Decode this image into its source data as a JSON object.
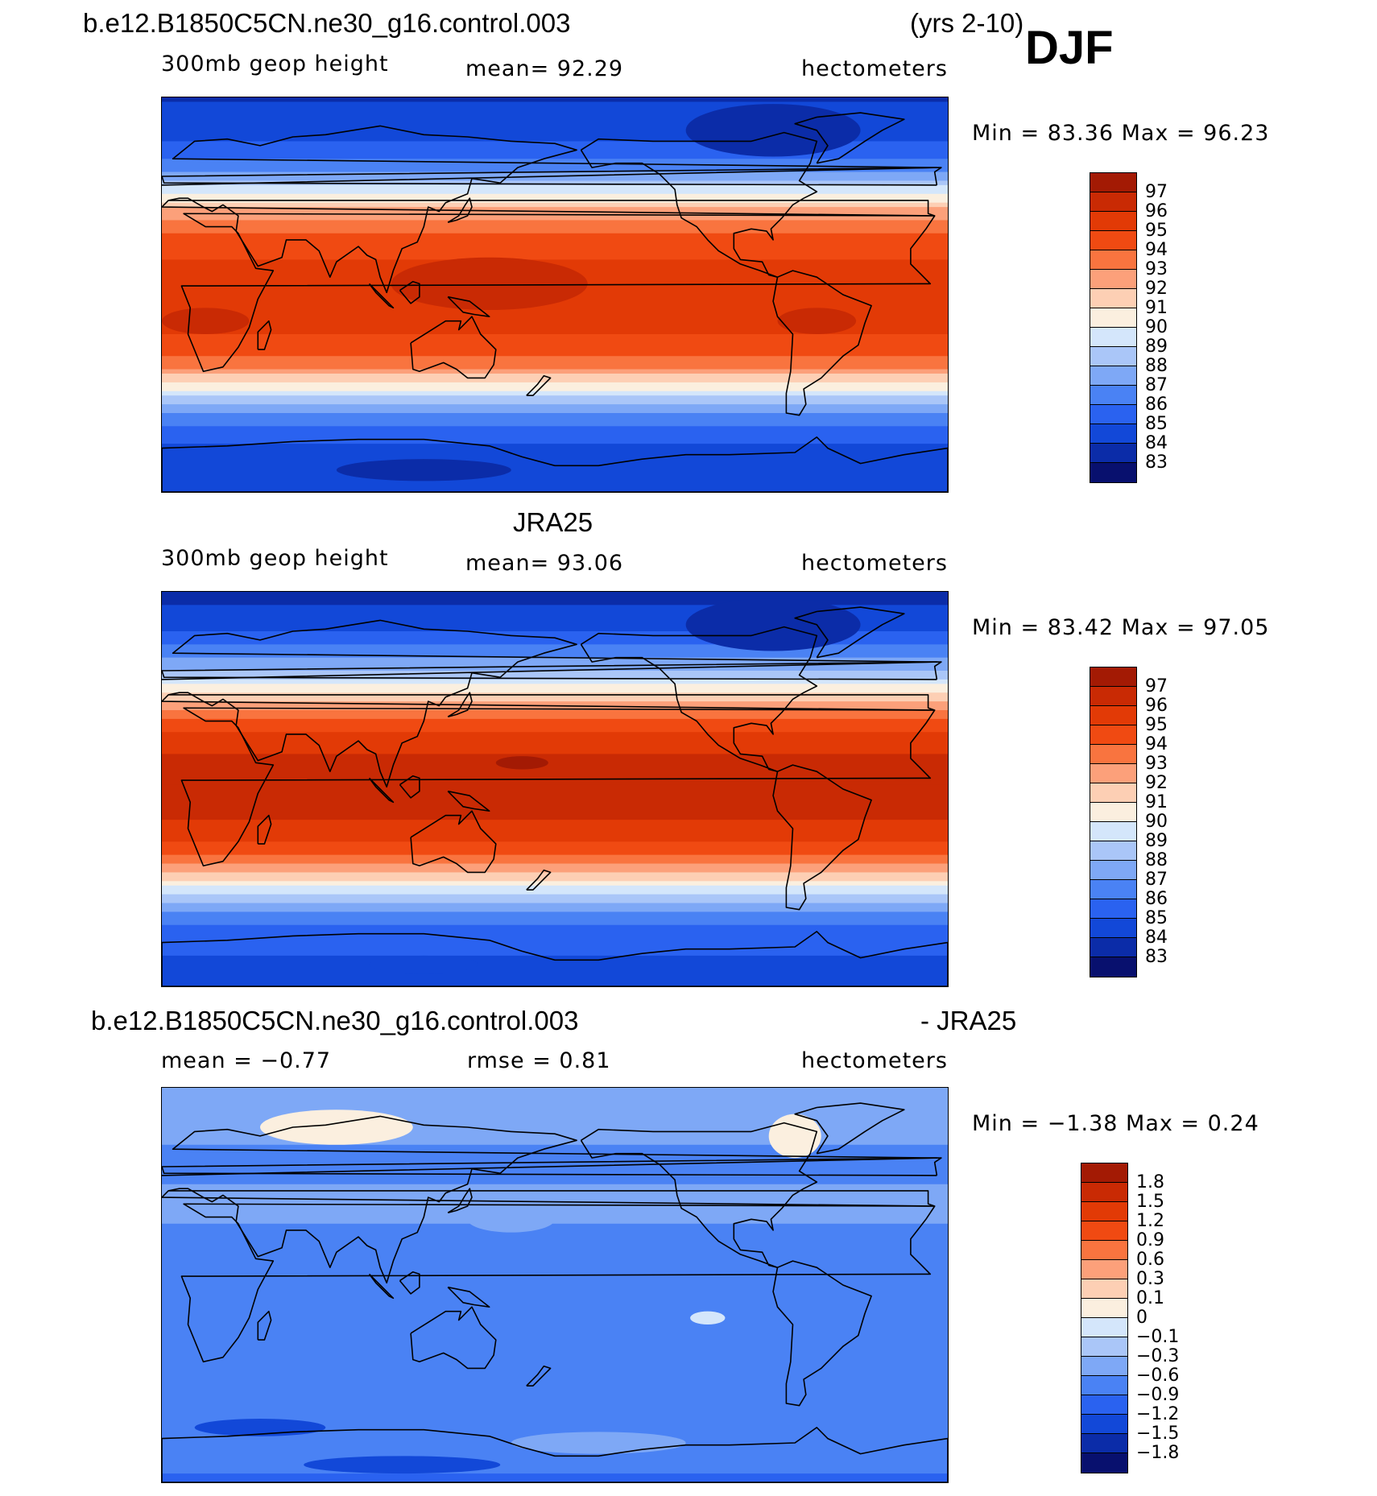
{
  "header": {
    "case_name": "b.e12.B1850C5CN.ne30_g16.control.003",
    "years": "(yrs 2-10)",
    "season": "DJF"
  },
  "colors": {
    "scale": [
      "#08106e",
      "#0b2ca8",
      "#1248d8",
      "#2a62f0",
      "#4a82f4",
      "#7ea8f6",
      "#aac6f8",
      "#d4e6fb",
      "#fbefdf",
      "#fdcfb4",
      "#fca07a",
      "#f9743f",
      "#f04a12",
      "#e23a06",
      "#c92a04",
      "#a31a04",
      "#820808"
    ],
    "coast": "#000000"
  },
  "panels": [
    {
      "id": "model",
      "title": "",
      "field": "300mb geop height",
      "stat": "mean=   92.29",
      "units": "hectometers",
      "minmax": "Min =   83.36 Max =   96.23",
      "bands": [
        {
          "lat": 90,
          "v": 83.9
        },
        {
          "lat": 80,
          "v": 84.3
        },
        {
          "lat": 70,
          "v": 85.0
        },
        {
          "lat": 60,
          "v": 86.3
        },
        {
          "lat": 52,
          "v": 88.0
        },
        {
          "lat": 46,
          "v": 90.0
        },
        {
          "lat": 40,
          "v": 91.8
        },
        {
          "lat": 32,
          "v": 93.6
        },
        {
          "lat": 22,
          "v": 94.6
        },
        {
          "lat": 10,
          "v": 95.3
        },
        {
          "lat": -10,
          "v": 95.5
        },
        {
          "lat": -22,
          "v": 94.8
        },
        {
          "lat": -32,
          "v": 93.3
        },
        {
          "lat": -40,
          "v": 91.0
        },
        {
          "lat": -46,
          "v": 89.2
        },
        {
          "lat": -52,
          "v": 87.5
        },
        {
          "lat": -60,
          "v": 85.8
        },
        {
          "lat": -70,
          "v": 84.8
        },
        {
          "lat": -80,
          "v": 84.4
        },
        {
          "lat": -90,
          "v": 84.3
        }
      ],
      "blobs": [
        {
          "lon": 150,
          "lat": 5,
          "rx": 45,
          "ry": 12,
          "v": 96.2
        },
        {
          "lon": 20,
          "lat": -12,
          "rx": 20,
          "ry": 6,
          "v": 96.0
        },
        {
          "lon": 300,
          "lat": -12,
          "rx": 18,
          "ry": 6,
          "v": 96.0
        },
        {
          "lon": 120,
          "lat": -80,
          "rx": 40,
          "ry": 5,
          "v": 83.4
        },
        {
          "lon": 280,
          "lat": 75,
          "rx": 40,
          "ry": 12,
          "v": 83.6
        }
      ],
      "cbar_labels": [
        "97",
        "96",
        "95",
        "94",
        "93",
        "92",
        "91",
        "90",
        "89",
        "88",
        "87",
        "86",
        "85",
        "84",
        "83"
      ]
    },
    {
      "id": "obs",
      "title": "JRA25",
      "field": "300mb geop height",
      "stat": "mean=   93.06",
      "units": "hectometers",
      "minmax": "Min =   83.42 Max =   97.05",
      "bands": [
        {
          "lat": 90,
          "v": 83.6
        },
        {
          "lat": 80,
          "v": 84.2
        },
        {
          "lat": 70,
          "v": 85.2
        },
        {
          "lat": 60,
          "v": 86.8
        },
        {
          "lat": 52,
          "v": 88.6
        },
        {
          "lat": 46,
          "v": 90.3
        },
        {
          "lat": 40,
          "v": 92.0
        },
        {
          "lat": 32,
          "v": 94.0
        },
        {
          "lat": 22,
          "v": 95.6
        },
        {
          "lat": 10,
          "v": 96.3
        },
        {
          "lat": -10,
          "v": 96.4
        },
        {
          "lat": -22,
          "v": 95.4
        },
        {
          "lat": -32,
          "v": 93.8
        },
        {
          "lat": -40,
          "v": 91.6
        },
        {
          "lat": -46,
          "v": 89.6
        },
        {
          "lat": -52,
          "v": 87.8
        },
        {
          "lat": -60,
          "v": 86.2
        },
        {
          "lat": -70,
          "v": 85.3
        },
        {
          "lat": -80,
          "v": 84.8
        },
        {
          "lat": -90,
          "v": 84.7
        }
      ],
      "blobs": [
        {
          "lon": 165,
          "lat": 12,
          "rx": 12,
          "ry": 3,
          "v": 97.0
        },
        {
          "lon": 120,
          "lat": -80,
          "rx": 25,
          "ry": 4,
          "v": 84.2
        },
        {
          "lon": 280,
          "lat": 75,
          "rx": 40,
          "ry": 12,
          "v": 83.5
        }
      ],
      "cbar_labels": [
        "97",
        "96",
        "95",
        "94",
        "93",
        "92",
        "91",
        "90",
        "89",
        "88",
        "87",
        "86",
        "85",
        "84",
        "83"
      ]
    },
    {
      "id": "diff",
      "title": "b.e12.B1850C5CN.ne30_g16.control.003",
      "title_right": "- JRA25",
      "field": "mean =   −0.77",
      "stat": "rmse =    0.81",
      "units": "hectometers",
      "minmax": "Min =   −1.38 Max =     0.24",
      "bands": [
        {
          "lat": 90,
          "v": -0.4
        },
        {
          "lat": 70,
          "v": -0.55
        },
        {
          "lat": 55,
          "v": -0.7
        },
        {
          "lat": 35,
          "v": -0.5
        },
        {
          "lat": 20,
          "v": -0.75
        },
        {
          "lat": 0,
          "v": -0.8
        },
        {
          "lat": -20,
          "v": -0.75
        },
        {
          "lat": -40,
          "v": -0.85
        },
        {
          "lat": -55,
          "v": -0.8
        },
        {
          "lat": -70,
          "v": -0.6
        },
        {
          "lat": -90,
          "v": -1.0
        }
      ],
      "blobs": [
        {
          "lon": 80,
          "lat": 72,
          "rx": 35,
          "ry": 8,
          "v": 0.05
        },
        {
          "lon": 290,
          "lat": 68,
          "rx": 12,
          "ry": 10,
          "v": 0.05
        },
        {
          "lon": 110,
          "lat": -82,
          "rx": 45,
          "ry": 4,
          "v": -1.3
        },
        {
          "lon": 200,
          "lat": -72,
          "rx": 40,
          "ry": 5,
          "v": -0.35
        },
        {
          "lon": 45,
          "lat": -65,
          "rx": 30,
          "ry": 4,
          "v": -1.25
        },
        {
          "lon": 160,
          "lat": 30,
          "rx": 20,
          "ry": 6,
          "v": -0.35
        },
        {
          "lon": 30,
          "lat": 40,
          "rx": 25,
          "ry": 5,
          "v": -0.35
        },
        {
          "lon": 250,
          "lat": -15,
          "rx": 8,
          "ry": 3,
          "v": -0.05
        }
      ],
      "cbar_labels": [
        "1.8",
        "1.5",
        "1.2",
        "0.9",
        "0.6",
        "0.3",
        "0.1",
        "0",
        "−0.1",
        "−0.3",
        "−0.6",
        "−0.9",
        "−1.2",
        "−1.5",
        "−1.8"
      ]
    }
  ],
  "chart_data": [
    {
      "type": "heatmap",
      "title": "b.e12.B1850C5CN.ne30_g16.control.003 (yrs 2-10) DJF",
      "variable": "300mb geop height",
      "units": "hectometers",
      "mean": 92.29,
      "min": 83.36,
      "max": 96.23,
      "contour_levels": [
        83,
        84,
        85,
        86,
        87,
        88,
        89,
        90,
        91,
        92,
        93,
        94,
        95,
        96,
        97
      ]
    },
    {
      "type": "heatmap",
      "title": "JRA25",
      "variable": "300mb geop height",
      "units": "hectometers",
      "mean": 93.06,
      "min": 83.42,
      "max": 97.05,
      "contour_levels": [
        83,
        84,
        85,
        86,
        87,
        88,
        89,
        90,
        91,
        92,
        93,
        94,
        95,
        96,
        97
      ]
    },
    {
      "type": "heatmap",
      "title": "b.e12.B1850C5CN.ne30_g16.control.003 - JRA25",
      "units": "hectometers",
      "mean": -0.77,
      "rmse": 0.81,
      "min": -1.38,
      "max": 0.24,
      "contour_levels": [
        -1.8,
        -1.5,
        -1.2,
        -0.9,
        -0.6,
        -0.3,
        -0.1,
        0,
        0.1,
        0.3,
        0.6,
        0.9,
        1.2,
        1.5,
        1.8
      ]
    }
  ]
}
